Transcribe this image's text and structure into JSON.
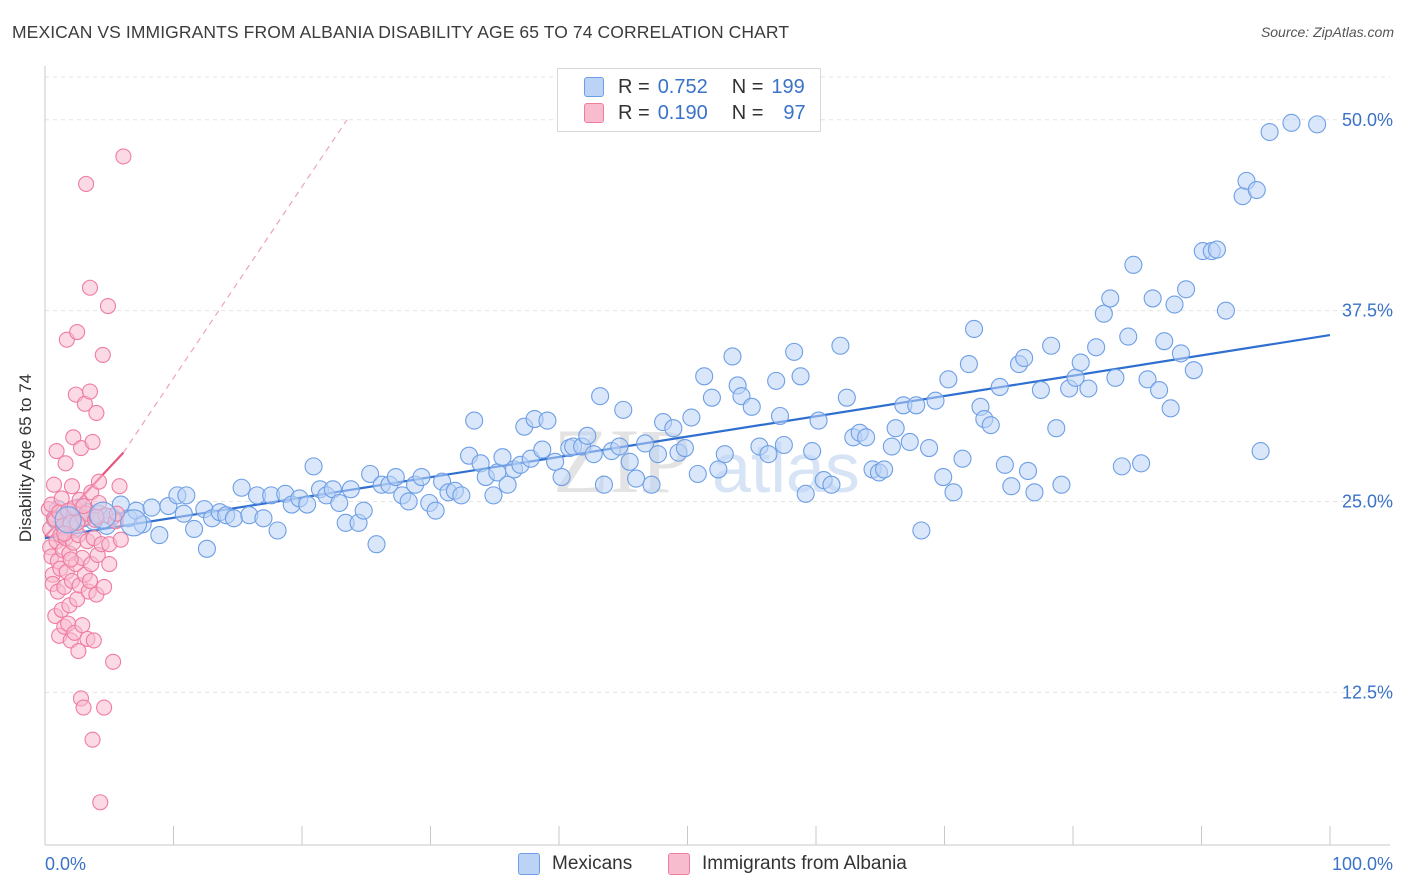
{
  "title": "MEXICAN VS IMMIGRANTS FROM ALBANIA DISABILITY AGE 65 TO 74 CORRELATION CHART",
  "source": "Source: ZipAtlas.com",
  "watermark": {
    "zip": "ZIP",
    "atlas": "atlas"
  },
  "legend": {
    "rows": [
      {
        "r_label": "R =",
        "r_value": "0.752",
        "n_label": "N =",
        "n_value": "199"
      },
      {
        "r_label": "R =",
        "r_value": "0.190",
        "n_label": "N =",
        "n_value": "97"
      }
    ]
  },
  "chart_data": {
    "type": "scatter",
    "title": "MEXICAN VS IMMIGRANTS FROM ALBANIA DISABILITY AGE 65 TO 74 CORRELATION CHART",
    "xlabel": "",
    "ylabel": "Disability Age 65 to 74",
    "xlim": [
      0,
      100
    ],
    "ylim": [
      2.5,
      53
    ],
    "x_tick_labels": [
      "0.0%",
      "100.0%"
    ],
    "y_ticks": [
      12.5,
      25.0,
      37.5,
      50.0
    ],
    "y_tick_labels": [
      "12.5%",
      "25.0%",
      "37.5%",
      "50.0%"
    ],
    "grid": true,
    "legend_position": "top-center",
    "series": [
      {
        "name": "Mexicans",
        "color": "#6e9fe6",
        "fill": "#bcd3f5",
        "r": 0.752,
        "n": 199,
        "trend": {
          "x": [
            0,
            100
          ],
          "y": [
            22.6,
            35.9
          ]
        },
        "points": [
          [
            0.8,
            23.8
          ],
          [
            1.0,
            24.5
          ],
          [
            1.4,
            22.9
          ],
          [
            1.8,
            23.6
          ],
          [
            2.0,
            24.1
          ],
          [
            2.3,
            23.2
          ],
          [
            2.6,
            24.6
          ],
          [
            3.0,
            23.9
          ],
          [
            3.3,
            24.3
          ],
          [
            3.8,
            23.7
          ],
          [
            4.2,
            24.2
          ],
          [
            4.8,
            23.4
          ],
          [
            5.2,
            24.0
          ],
          [
            5.9,
            24.8
          ],
          [
            6.5,
            23.9
          ],
          [
            7.1,
            24.4
          ],
          [
            7.6,
            23.5
          ],
          [
            8.3,
            24.6
          ],
          [
            8.9,
            22.8
          ],
          [
            9.6,
            24.7
          ],
          [
            10.3,
            25.4
          ],
          [
            10.8,
            24.2
          ],
          [
            11.0,
            25.4
          ],
          [
            11.6,
            23.2
          ],
          [
            12.4,
            24.5
          ],
          [
            12.6,
            21.9
          ],
          [
            13.0,
            23.9
          ],
          [
            13.6,
            24.3
          ],
          [
            14.1,
            24.1
          ],
          [
            14.7,
            23.9
          ],
          [
            15.3,
            25.9
          ],
          [
            15.9,
            24.1
          ],
          [
            16.5,
            25.4
          ],
          [
            17.0,
            23.9
          ],
          [
            17.6,
            25.4
          ],
          [
            18.1,
            23.1
          ],
          [
            18.7,
            25.5
          ],
          [
            19.2,
            24.8
          ],
          [
            19.8,
            25.2
          ],
          [
            20.4,
            24.8
          ],
          [
            20.9,
            27.3
          ],
          [
            21.4,
            25.8
          ],
          [
            21.9,
            25.4
          ],
          [
            22.4,
            25.8
          ],
          [
            22.9,
            24.9
          ],
          [
            23.4,
            23.6
          ],
          [
            23.8,
            25.8
          ],
          [
            24.4,
            23.6
          ],
          [
            24.8,
            24.4
          ],
          [
            25.3,
            26.8
          ],
          [
            25.8,
            22.2
          ],
          [
            26.2,
            26.1
          ],
          [
            26.8,
            26.1
          ],
          [
            27.3,
            26.6
          ],
          [
            27.8,
            25.4
          ],
          [
            28.3,
            25.0
          ],
          [
            28.8,
            26.1
          ],
          [
            29.3,
            26.6
          ],
          [
            29.9,
            24.9
          ],
          [
            30.4,
            24.4
          ],
          [
            30.9,
            26.3
          ],
          [
            31.4,
            25.6
          ],
          [
            31.9,
            25.7
          ],
          [
            32.4,
            25.4
          ],
          [
            33.0,
            28.0
          ],
          [
            33.4,
            30.3
          ],
          [
            33.9,
            27.5
          ],
          [
            34.3,
            26.6
          ],
          [
            34.9,
            25.4
          ],
          [
            35.2,
            26.9
          ],
          [
            35.6,
            27.9
          ],
          [
            36.0,
            26.1
          ],
          [
            36.5,
            27.1
          ],
          [
            37.0,
            27.4
          ],
          [
            37.3,
            29.9
          ],
          [
            37.8,
            27.8
          ],
          [
            38.1,
            30.4
          ],
          [
            38.7,
            28.4
          ],
          [
            39.1,
            30.3
          ],
          [
            39.7,
            27.6
          ],
          [
            40.2,
            26.6
          ],
          [
            40.8,
            28.5
          ],
          [
            41.1,
            28.6
          ],
          [
            41.8,
            28.6
          ],
          [
            42.2,
            29.3
          ],
          [
            42.7,
            28.1
          ],
          [
            43.2,
            31.9
          ],
          [
            43.5,
            26.1
          ],
          [
            44.1,
            28.3
          ],
          [
            44.7,
            28.6
          ],
          [
            45.0,
            31.0
          ],
          [
            45.5,
            27.6
          ],
          [
            46.0,
            26.5
          ],
          [
            46.7,
            28.8
          ],
          [
            47.2,
            26.1
          ],
          [
            47.7,
            28.1
          ],
          [
            48.1,
            30.2
          ],
          [
            48.9,
            29.8
          ],
          [
            49.3,
            28.2
          ],
          [
            49.8,
            28.5
          ],
          [
            50.3,
            30.5
          ],
          [
            50.8,
            26.8
          ],
          [
            51.3,
            33.2
          ],
          [
            51.9,
            31.8
          ],
          [
            52.4,
            27.1
          ],
          [
            52.9,
            28.1
          ],
          [
            53.5,
            34.5
          ],
          [
            53.9,
            32.6
          ],
          [
            54.2,
            31.9
          ],
          [
            55.0,
            31.2
          ],
          [
            55.6,
            28.6
          ],
          [
            56.3,
            28.1
          ],
          [
            56.9,
            32.9
          ],
          [
            57.2,
            30.6
          ],
          [
            57.5,
            28.7
          ],
          [
            58.3,
            34.8
          ],
          [
            58.8,
            33.2
          ],
          [
            59.2,
            25.5
          ],
          [
            59.7,
            28.3
          ],
          [
            60.2,
            30.3
          ],
          [
            60.6,
            26.4
          ],
          [
            61.2,
            26.1
          ],
          [
            61.9,
            35.2
          ],
          [
            62.4,
            31.8
          ],
          [
            62.9,
            29.2
          ],
          [
            63.4,
            29.5
          ],
          [
            63.9,
            29.2
          ],
          [
            64.4,
            27.1
          ],
          [
            64.9,
            26.9
          ],
          [
            65.3,
            27.1
          ],
          [
            65.9,
            28.6
          ],
          [
            66.2,
            29.8
          ],
          [
            66.8,
            31.3
          ],
          [
            67.3,
            28.9
          ],
          [
            67.8,
            31.3
          ],
          [
            68.2,
            23.1
          ],
          [
            68.8,
            28.5
          ],
          [
            69.3,
            31.6
          ],
          [
            69.9,
            26.6
          ],
          [
            70.3,
            33.0
          ],
          [
            70.7,
            25.6
          ],
          [
            71.4,
            27.8
          ],
          [
            71.9,
            34.0
          ],
          [
            72.3,
            36.3
          ],
          [
            72.8,
            31.2
          ],
          [
            73.1,
            30.4
          ],
          [
            73.6,
            30.0
          ],
          [
            74.3,
            32.5
          ],
          [
            74.7,
            27.4
          ],
          [
            75.2,
            26.0
          ],
          [
            75.8,
            34.0
          ],
          [
            76.2,
            34.4
          ],
          [
            76.5,
            27.0
          ],
          [
            77.0,
            25.6
          ],
          [
            77.5,
            32.3
          ],
          [
            78.3,
            35.2
          ],
          [
            78.7,
            29.8
          ],
          [
            79.1,
            26.1
          ],
          [
            79.7,
            32.4
          ],
          [
            80.2,
            33.1
          ],
          [
            80.6,
            34.1
          ],
          [
            81.2,
            32.4
          ],
          [
            81.8,
            35.1
          ],
          [
            82.4,
            37.3
          ],
          [
            82.9,
            38.3
          ],
          [
            83.3,
            33.1
          ],
          [
            83.8,
            27.3
          ],
          [
            84.3,
            35.8
          ],
          [
            84.7,
            40.5
          ],
          [
            85.3,
            27.5
          ],
          [
            85.8,
            33.0
          ],
          [
            86.2,
            38.3
          ],
          [
            86.7,
            32.3
          ],
          [
            87.1,
            35.5
          ],
          [
            87.6,
            31.1
          ],
          [
            87.9,
            37.9
          ],
          [
            88.4,
            34.7
          ],
          [
            88.8,
            38.9
          ],
          [
            89.4,
            33.6
          ],
          [
            90.1,
            41.4
          ],
          [
            90.8,
            41.4
          ],
          [
            91.2,
            41.5
          ],
          [
            91.9,
            37.5
          ],
          [
            93.2,
            45.0
          ],
          [
            93.5,
            46.0
          ],
          [
            94.3,
            45.4
          ],
          [
            94.6,
            28.3
          ],
          [
            95.3,
            49.2
          ],
          [
            97.0,
            49.8
          ],
          [
            99.0,
            49.7
          ]
        ]
      },
      {
        "name": "Immigrants from Albania",
        "color": "#f07ca0",
        "fill": "#f8bccf",
        "r": 0.19,
        "n": 97,
        "trend": {
          "x": [
            0,
            6.1
          ],
          "y": [
            22.7,
            28.2
          ]
        },
        "trend_extension": {
          "x": [
            6.1,
            23.5
          ],
          "y": [
            28.2,
            50.0
          ]
        },
        "points": [
          [
            0.3,
            24.5
          ],
          [
            0.4,
            23.2
          ],
          [
            0.4,
            22.0
          ],
          [
            0.5,
            24.8
          ],
          [
            0.5,
            21.4
          ],
          [
            0.6,
            20.2
          ],
          [
            0.6,
            19.6
          ],
          [
            0.7,
            23.9
          ],
          [
            0.7,
            26.1
          ],
          [
            0.8,
            17.5
          ],
          [
            0.8,
            23.8
          ],
          [
            0.9,
            22.4
          ],
          [
            0.9,
            28.3
          ],
          [
            1.0,
            21.1
          ],
          [
            1.0,
            19.1
          ],
          [
            1.1,
            16.2
          ],
          [
            1.1,
            24.3
          ],
          [
            1.2,
            22.8
          ],
          [
            1.2,
            20.6
          ],
          [
            1.3,
            17.9
          ],
          [
            1.3,
            25.2
          ],
          [
            1.4,
            23.4
          ],
          [
            1.4,
            21.8
          ],
          [
            1.5,
            19.4
          ],
          [
            1.5,
            16.8
          ],
          [
            1.6,
            27.5
          ],
          [
            1.6,
            22.6
          ],
          [
            1.7,
            35.6
          ],
          [
            1.7,
            20.4
          ],
          [
            1.8,
            24.4
          ],
          [
            1.8,
            17.0
          ],
          [
            1.9,
            21.6
          ],
          [
            1.9,
            18.2
          ],
          [
            2.0,
            23.6
          ],
          [
            2.0,
            15.9
          ],
          [
            2.1,
            26.0
          ],
          [
            2.1,
            19.8
          ],
          [
            2.2,
            29.2
          ],
          [
            2.2,
            22.3
          ],
          [
            2.3,
            16.4
          ],
          [
            2.3,
            24.6
          ],
          [
            2.4,
            32.0
          ],
          [
            2.4,
            20.9
          ],
          [
            2.5,
            36.1
          ],
          [
            2.5,
            18.6
          ],
          [
            2.6,
            22.8
          ],
          [
            2.6,
            15.2
          ],
          [
            2.7,
            25.1
          ],
          [
            2.7,
            19.5
          ],
          [
            2.8,
            28.5
          ],
          [
            2.8,
            12.1
          ],
          [
            2.9,
            21.3
          ],
          [
            2.9,
            16.9
          ],
          [
            3.0,
            23.9
          ],
          [
            3.0,
            11.5
          ],
          [
            3.1,
            31.4
          ],
          [
            3.1,
            20.2
          ],
          [
            3.2,
            45.8
          ],
          [
            3.2,
            24.2
          ],
          [
            3.3,
            16.0
          ],
          [
            3.3,
            22.4
          ],
          [
            3.4,
            19.1
          ],
          [
            3.5,
            39.0
          ],
          [
            3.5,
            32.2
          ],
          [
            3.6,
            25.6
          ],
          [
            3.6,
            20.9
          ],
          [
            3.7,
            28.9
          ],
          [
            3.7,
            9.4
          ],
          [
            3.8,
            22.6
          ],
          [
            3.8,
            15.9
          ],
          [
            3.9,
            23.8
          ],
          [
            4.0,
            18.9
          ],
          [
            4.0,
            30.8
          ],
          [
            4.1,
            21.5
          ],
          [
            4.2,
            26.3
          ],
          [
            4.2,
            24.9
          ],
          [
            4.3,
            5.3
          ],
          [
            4.4,
            22.2
          ],
          [
            4.5,
            34.6
          ],
          [
            4.6,
            19.4
          ],
          [
            4.6,
            11.5
          ],
          [
            4.7,
            24.1
          ],
          [
            4.9,
            37.8
          ],
          [
            5.0,
            20.9
          ],
          [
            5.0,
            22.2
          ],
          [
            5.3,
            14.5
          ],
          [
            5.5,
            23.7
          ],
          [
            5.6,
            24.2
          ],
          [
            5.8,
            26.0
          ],
          [
            5.9,
            22.5
          ],
          [
            6.1,
            47.6
          ],
          [
            1.5,
            22.9
          ],
          [
            2.0,
            21.2
          ],
          [
            2.5,
            23.6
          ],
          [
            3.0,
            24.7
          ],
          [
            3.5,
            19.8
          ],
          [
            4.0,
            24.0
          ]
        ]
      }
    ]
  }
}
